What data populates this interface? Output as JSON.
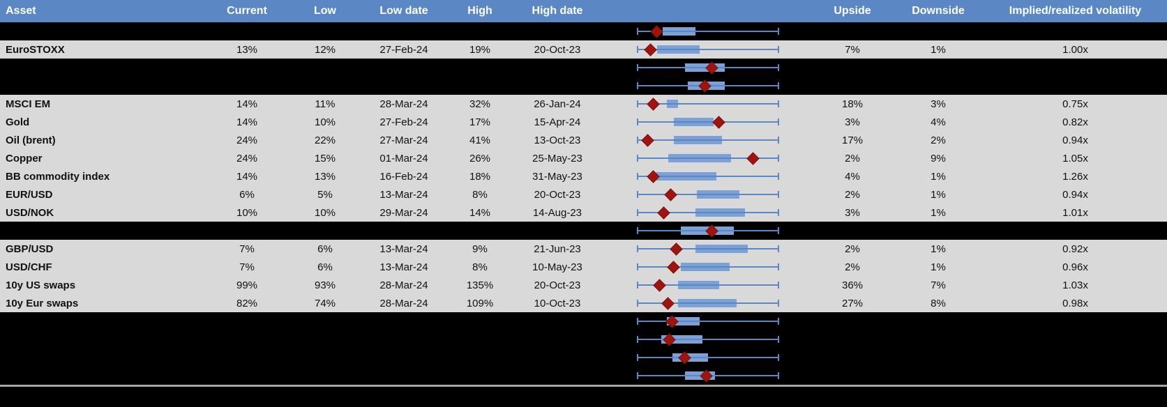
{
  "colors": {
    "header_bg": "#5b87c5",
    "row_bg": "#d9d9d9",
    "spacer_bg": "#000000",
    "box_fill": "#7ba1d7",
    "whisker": "#5d87c4",
    "diamond": "#9e1410",
    "divider": "#a6a6a6"
  },
  "chart_data": {
    "type": "table",
    "subtype": "boxplot-per-row",
    "description_fields": [
      "asset",
      "current",
      "low",
      "low_date",
      "high",
      "high_date",
      "boxplot",
      "upside",
      "downside",
      "implied_realized_volatility"
    ],
    "columns": [
      "Asset",
      "Current",
      "Low",
      "Low date",
      "High",
      "High date",
      "",
      "Upside",
      "Downside",
      "Implied/realized volatility"
    ],
    "boxplot_scale_note": "chart values are percent of whisker range (0 = low whisker cap, 100 = high whisker cap); marker = current level (red diamond), box = interquartile band",
    "rows": [
      {
        "kind": "spacer",
        "chart": {
          "min": 0,
          "q1": 18,
          "current": 14,
          "q3": 41,
          "max": 100
        }
      },
      {
        "kind": "data",
        "asset": "EuroSTOXX",
        "current": "13%",
        "low": "12%",
        "low_date": "27-Feb-24",
        "high": "19%",
        "high_date": "20-Oct-23",
        "upside": "7%",
        "downside": "1%",
        "ivrv": "1.00x",
        "chart": {
          "min": 0,
          "q1": 14,
          "current": 10,
          "q3": 44,
          "max": 100
        }
      },
      {
        "kind": "spacer",
        "chart": {
          "min": 0,
          "q1": 34,
          "current": 53,
          "q3": 62,
          "max": 100
        }
      },
      {
        "kind": "spacer",
        "chart": {
          "min": 0,
          "q1": 36,
          "current": 48,
          "q3": 62,
          "max": 100
        }
      },
      {
        "kind": "data",
        "asset": "MSCI EM",
        "current": "14%",
        "low": "11%",
        "low_date": "28-Mar-24",
        "high": "32%",
        "high_date": "26-Jan-24",
        "upside": "18%",
        "downside": "3%",
        "ivrv": "0.75x",
        "chart": {
          "min": 0,
          "q1": 21,
          "current": 12,
          "q3": 29,
          "max": 100
        }
      },
      {
        "kind": "data",
        "asset": "Gold",
        "current": "14%",
        "low": "10%",
        "low_date": "27-Feb-24",
        "high": "17%",
        "high_date": "15-Apr-24",
        "upside": "3%",
        "downside": "4%",
        "ivrv": "0.82x",
        "chart": {
          "min": 0,
          "q1": 26,
          "current": 58,
          "q3": 54,
          "max": 100
        }
      },
      {
        "kind": "data",
        "asset": "Oil (brent)",
        "current": "24%",
        "low": "22%",
        "low_date": "27-Mar-24",
        "high": "41%",
        "high_date": "13-Oct-23",
        "upside": "17%",
        "downside": "2%",
        "ivrv": "0.94x",
        "chart": {
          "min": 0,
          "q1": 26,
          "current": 8,
          "q3": 60,
          "max": 100
        }
      },
      {
        "kind": "data",
        "asset": "Copper",
        "current": "24%",
        "low": "15%",
        "low_date": "01-Mar-24",
        "high": "26%",
        "high_date": "25-May-23",
        "upside": "2%",
        "downside": "9%",
        "ivrv": "1.05x",
        "chart": {
          "min": 0,
          "q1": 22,
          "current": 82,
          "q3": 66,
          "max": 100
        }
      },
      {
        "kind": "data",
        "asset": "BB commodity index",
        "current": "14%",
        "low": "13%",
        "low_date": "16-Feb-24",
        "high": "18%",
        "high_date": "31-May-23",
        "upside": "4%",
        "downside": "1%",
        "ivrv": "1.26x",
        "chart": {
          "min": 0,
          "q1": 13,
          "current": 12,
          "q3": 56,
          "max": 100
        }
      },
      {
        "kind": "data",
        "asset": "EUR/USD",
        "current": "6%",
        "low": "5%",
        "low_date": "13-Mar-24",
        "high": "8%",
        "high_date": "20-Oct-23",
        "upside": "2%",
        "downside": "1%",
        "ivrv": "0.94x",
        "chart": {
          "min": 0,
          "q1": 42,
          "current": 24,
          "q3": 72,
          "max": 100
        }
      },
      {
        "kind": "data",
        "asset": "USD/NOK",
        "current": "10%",
        "low": "10%",
        "low_date": "29-Mar-24",
        "high": "14%",
        "high_date": "14-Aug-23",
        "upside": "3%",
        "downside": "1%",
        "ivrv": "1.01x",
        "chart": {
          "min": 0,
          "q1": 41,
          "current": 19,
          "q3": 76,
          "max": 100
        }
      },
      {
        "kind": "spacer",
        "chart": {
          "min": 0,
          "q1": 31,
          "current": 53,
          "q3": 68,
          "max": 100
        }
      },
      {
        "kind": "data",
        "asset": "GBP/USD",
        "current": "7%",
        "low": "6%",
        "low_date": "13-Mar-24",
        "high": "9%",
        "high_date": "21-Jun-23",
        "upside": "2%",
        "downside": "1%",
        "ivrv": "0.92x",
        "chart": {
          "min": 0,
          "q1": 41,
          "current": 28,
          "q3": 78,
          "max": 100
        }
      },
      {
        "kind": "data",
        "asset": "USD/CHF",
        "current": "7%",
        "low": "6%",
        "low_date": "13-Mar-24",
        "high": "8%",
        "high_date": "10-May-23",
        "upside": "2%",
        "downside": "1%",
        "ivrv": "0.96x",
        "chart": {
          "min": 0,
          "q1": 31,
          "current": 26,
          "q3": 65,
          "max": 100
        }
      },
      {
        "kind": "data",
        "asset": "10y US swaps",
        "current": "99%",
        "low": "93%",
        "low_date": "28-Mar-24",
        "high": "135%",
        "high_date": "20-Oct-23",
        "upside": "36%",
        "downside": "7%",
        "ivrv": "1.03x",
        "chart": {
          "min": 0,
          "q1": 29,
          "current": 16,
          "q3": 58,
          "max": 100
        }
      },
      {
        "kind": "data",
        "asset": "10y Eur swaps",
        "current": "82%",
        "low": "74%",
        "low_date": "28-Mar-24",
        "high": "109%",
        "high_date": "10-Oct-23",
        "upside": "27%",
        "downside": "8%",
        "ivrv": "0.98x",
        "chart": {
          "min": 0,
          "q1": 29,
          "current": 22,
          "q3": 70,
          "max": 100
        }
      },
      {
        "kind": "spacer",
        "chart": {
          "min": 0,
          "q1": 21,
          "current": 25,
          "q3": 44,
          "max": 100
        }
      },
      {
        "kind": "spacer",
        "chart": {
          "min": 0,
          "q1": 17,
          "current": 23,
          "q3": 46,
          "max": 100
        }
      },
      {
        "kind": "spacer",
        "chart": {
          "min": 0,
          "q1": 25,
          "current": 34,
          "q3": 50,
          "max": 100
        }
      },
      {
        "kind": "spacer",
        "chart": {
          "min": 0,
          "q1": 34,
          "current": 49,
          "q3": 55,
          "max": 100
        }
      }
    ]
  }
}
